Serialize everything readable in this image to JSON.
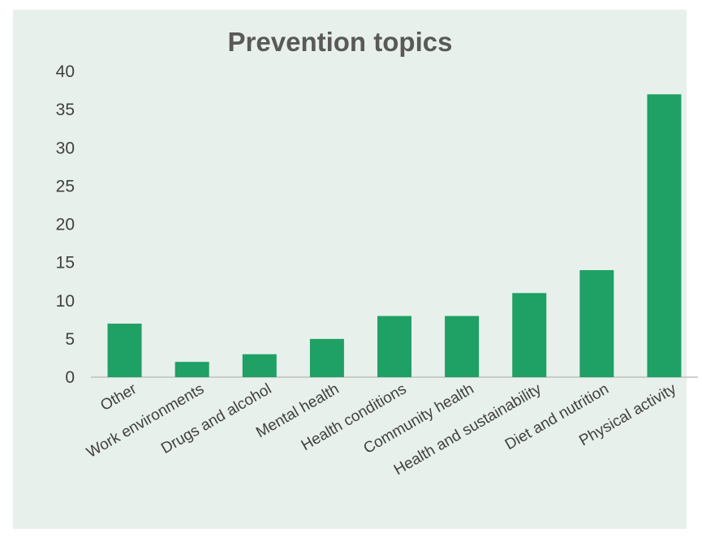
{
  "chart_data": {
    "type": "bar",
    "title": "Prevention topics",
    "xlabel": "",
    "ylabel": "",
    "ylim": [
      0,
      40
    ],
    "yticks": [
      0,
      5,
      10,
      15,
      20,
      25,
      30,
      35,
      40
    ],
    "grid": false,
    "legend": "none",
    "categories": [
      "Other",
      "Work environments",
      "Drugs and alcohol",
      "Mental health",
      "Health conditions",
      "Community health",
      "Health and sustainability",
      "Diet and nutrition",
      "Physical activity"
    ],
    "values": [
      7,
      2,
      3,
      5,
      8,
      8,
      11,
      14,
      37
    ],
    "bar_color": "#1fa065",
    "background_color": "#e8f0eb",
    "axis_color": "#bfbfbf"
  }
}
